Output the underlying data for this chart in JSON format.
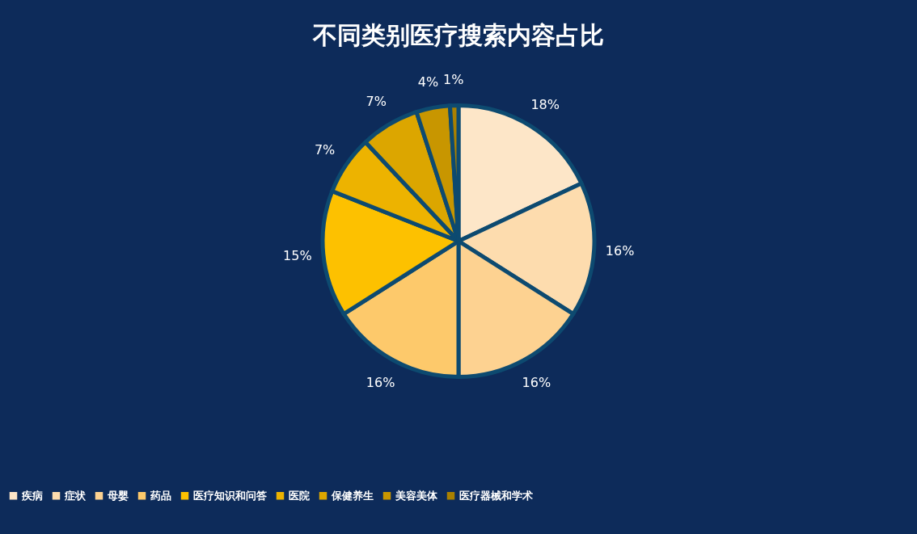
{
  "chart_data": {
    "type": "pie",
    "title": "不同类别医疗搜索内容占比",
    "categories": [
      "疾病",
      "症状",
      "母婴",
      "药品",
      "医疗知识和问答",
      "医院",
      "保健养生",
      "美容美体",
      "医疗器械和学术"
    ],
    "values": [
      18,
      16,
      16,
      16,
      15,
      7,
      7,
      4,
      1
    ],
    "value_labels": [
      "18%",
      "16%",
      "16%",
      "16%",
      "15%",
      "7%",
      "7%",
      "4%",
      "1%"
    ],
    "colors": [
      "#fde6c8",
      "#fddcae",
      "#fdd291",
      "#fdc96b",
      "#fdc100",
      "#edb300",
      "#dca600",
      "#c89600",
      "#a98000"
    ],
    "legend": "bottom"
  }
}
